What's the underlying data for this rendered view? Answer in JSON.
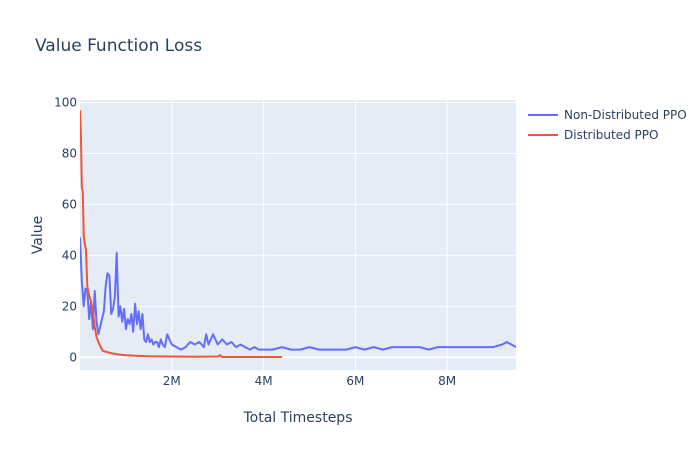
{
  "chart_data": {
    "type": "line",
    "title": "Value Function Loss",
    "xlabel": "Total Timesteps",
    "ylabel": "Value",
    "xlim": [
      0,
      9500000
    ],
    "ylim": [
      -5,
      101
    ],
    "x_ticks": [
      {
        "value": 2000000,
        "label": "2M"
      },
      {
        "value": 4000000,
        "label": "4M"
      },
      {
        "value": 6000000,
        "label": "6M"
      },
      {
        "value": 8000000,
        "label": "8M"
      }
    ],
    "y_ticks": [
      {
        "value": 0,
        "label": "0"
      },
      {
        "value": 20,
        "label": "20"
      },
      {
        "value": 40,
        "label": "40"
      },
      {
        "value": 60,
        "label": "60"
      },
      {
        "value": 80,
        "label": "80"
      },
      {
        "value": 100,
        "label": "100"
      }
    ],
    "grid": true,
    "legend_position": "top-right",
    "series": [
      {
        "name": "Non-Distributed PPO",
        "color": "#636efa",
        "x": [
          0,
          40000,
          80000,
          120000,
          160000,
          200000,
          240000,
          280000,
          320000,
          360000,
          400000,
          440000,
          480000,
          520000,
          560000,
          600000,
          640000,
          680000,
          720000,
          760000,
          800000,
          840000,
          880000,
          920000,
          960000,
          1000000,
          1040000,
          1080000,
          1120000,
          1160000,
          1200000,
          1240000,
          1280000,
          1320000,
          1360000,
          1400000,
          1440000,
          1480000,
          1520000,
          1560000,
          1600000,
          1640000,
          1680000,
          1720000,
          1760000,
          1800000,
          1850000,
          1900000,
          2000000,
          2100000,
          2200000,
          2300000,
          2400000,
          2500000,
          2600000,
          2700000,
          2750000,
          2800000,
          2850000,
          2900000,
          3000000,
          3100000,
          3200000,
          3300000,
          3400000,
          3500000,
          3600000,
          3700000,
          3800000,
          3900000,
          4000000,
          4200000,
          4400000,
          4600000,
          4800000,
          5000000,
          5200000,
          5400000,
          5600000,
          5800000,
          6000000,
          6200000,
          6400000,
          6600000,
          6800000,
          7000000,
          7200000,
          7400000,
          7600000,
          7800000,
          8000000,
          8200000,
          8400000,
          8600000,
          8800000,
          9000000,
          9200000,
          9300000,
          9400000,
          9500000
        ],
        "y": [
          47,
          30,
          20,
          27,
          26,
          15,
          22,
          11,
          26,
          14,
          9,
          12,
          15,
          18,
          28,
          33,
          32,
          17,
          19,
          24,
          41,
          16,
          20,
          14,
          19,
          11,
          15,
          13,
          17,
          10,
          21,
          13,
          18,
          11,
          17,
          7,
          6,
          9,
          6,
          7,
          5,
          6,
          6,
          4,
          7,
          5,
          4,
          9,
          5,
          4,
          3,
          4,
          6,
          5,
          6,
          4,
          9,
          5,
          7,
          9,
          5,
          7,
          5,
          6,
          4,
          5,
          4,
          3,
          4,
          3,
          3,
          3,
          4,
          3,
          3,
          4,
          3,
          3,
          3,
          3,
          4,
          3,
          4,
          3,
          4,
          4,
          4,
          4,
          3,
          4,
          4,
          4,
          4,
          4,
          4,
          4,
          5,
          6,
          5,
          4
        ],
        "values": [
          47,
          30,
          20,
          27,
          26,
          15,
          22,
          11,
          26,
          14,
          9,
          12,
          15,
          18,
          28,
          33,
          32,
          17,
          19,
          24,
          41,
          16,
          20,
          14,
          19,
          11,
          15,
          13,
          17,
          10,
          21,
          13,
          18,
          11,
          17,
          7,
          6,
          9,
          6,
          7,
          5,
          6,
          6,
          4,
          7,
          5,
          4,
          9,
          5,
          4,
          3,
          4,
          6,
          5,
          6,
          4,
          9,
          5,
          7,
          9,
          5,
          7,
          5,
          6,
          4,
          5,
          4,
          3,
          4,
          3,
          3,
          3,
          4,
          3,
          3,
          4,
          3,
          3,
          3,
          3,
          4,
          3,
          4,
          3,
          4,
          4,
          4,
          4,
          3,
          4,
          4,
          4,
          4,
          4,
          4,
          4,
          5,
          6,
          5,
          4
        ]
      },
      {
        "name": "Distributed PPO",
        "color": "#ef553b",
        "x": [
          0,
          20000,
          40000,
          60000,
          80000,
          100000,
          130000,
          160000,
          200000,
          240000,
          280000,
          320000,
          360000,
          400000,
          450000,
          500000,
          600000,
          700000,
          800000,
          1000000,
          1200000,
          1500000,
          2000000,
          2500000,
          3000000,
          3050000,
          3100000,
          3500000,
          4000000,
          4400000
        ],
        "y": [
          97,
          88,
          67,
          65,
          48,
          45,
          42,
          28,
          24,
          22,
          18,
          12,
          8,
          6,
          4,
          2.5,
          2,
          1.5,
          1.2,
          0.8,
          0.6,
          0.4,
          0.3,
          0.2,
          0.3,
          0.8,
          0.1,
          0.1,
          0.1,
          0.1
        ],
        "values": [
          97,
          88,
          67,
          65,
          48,
          45,
          42,
          28,
          24,
          22,
          18,
          12,
          8,
          6,
          4,
          2.5,
          2,
          1.5,
          1.2,
          0.8,
          0.6,
          0.4,
          0.3,
          0.2,
          0.3,
          0.8,
          0.1,
          0.1,
          0.1,
          0.1
        ]
      }
    ]
  }
}
